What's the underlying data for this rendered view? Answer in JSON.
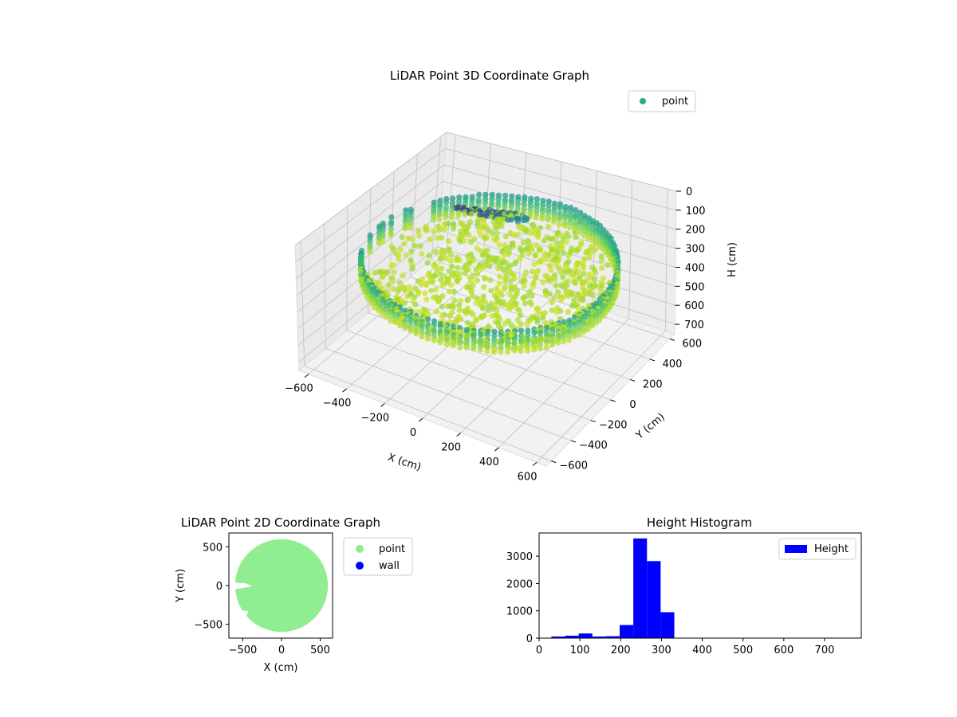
{
  "figure": {
    "colors": {
      "point_3d": "#2aa884",
      "point_2d": "#90ee90",
      "wall": "#0000ff",
      "histogram": "#0000ff"
    }
  },
  "chart_data": [
    {
      "type": "scatter",
      "title": "LiDAR Point 3D Coordinate Graph",
      "xlabel": "X (cm)",
      "ylabel": "Y (cm)",
      "zlabel": "H (cm)",
      "xticks": [
        "−600",
        "−400",
        "−200",
        "0",
        "200",
        "400",
        "600"
      ],
      "yticks": [
        "−600",
        "−400",
        "−200",
        "0",
        "200",
        "400",
        "600"
      ],
      "zticks": [
        "0",
        "100",
        "200",
        "300",
        "400",
        "500",
        "600",
        "700"
      ],
      "xlim": [
        -650,
        650
      ],
      "ylim": [
        -650,
        650
      ],
      "zlim": [
        0,
        750
      ],
      "z_axis_inverted": true,
      "grid": true,
      "colormap": "viridis",
      "legend": {
        "position": "top-right",
        "entries": [
          "point"
        ]
      },
      "series": [
        {
          "name": "point",
          "description_of_shape": "ring of points at radius ~600 cm plus inner floor points, height mostly 200–330 cm",
          "ring_radius": 600,
          "height_range": [
            200,
            330
          ]
        }
      ]
    },
    {
      "type": "scatter",
      "title": "LiDAR Point 2D Coordinate Graph",
      "xlabel": "X (cm)",
      "ylabel": "Y (cm)",
      "xticks": [
        "−500",
        "0",
        "500"
      ],
      "yticks": [
        "500",
        "0",
        "−500"
      ],
      "xlim": [
        -680,
        660
      ],
      "ylim": [
        -680,
        680
      ],
      "grid": false,
      "legend": {
        "position": "outside-right",
        "entries": [
          "point",
          "wall"
        ]
      },
      "series": [
        {
          "name": "point",
          "shape": "filled disc",
          "radius": 600,
          "center": [
            0,
            0
          ]
        },
        {
          "name": "wall",
          "points": []
        }
      ]
    },
    {
      "type": "bar",
      "title": "Height Histogram",
      "xlabel": "",
      "ylabel": "",
      "xticks": [
        "0",
        "100",
        "200",
        "300",
        "400",
        "500",
        "600",
        "700"
      ],
      "yticks": [
        "0",
        "1000",
        "2000",
        "3000"
      ],
      "xlim": [
        0,
        790
      ],
      "ylim": [
        0,
        3850
      ],
      "legend": {
        "position": "top-right",
        "entries": [
          "Height"
        ]
      },
      "bin_width": 33.5,
      "series": [
        {
          "name": "Height",
          "bin_starts": [
            30,
            63.5,
            97,
            130.5,
            164,
            197.5,
            231,
            264.5,
            298
          ],
          "values": [
            60,
            90,
            170,
            60,
            70,
            480,
            3650,
            2820,
            950
          ]
        }
      ]
    }
  ]
}
